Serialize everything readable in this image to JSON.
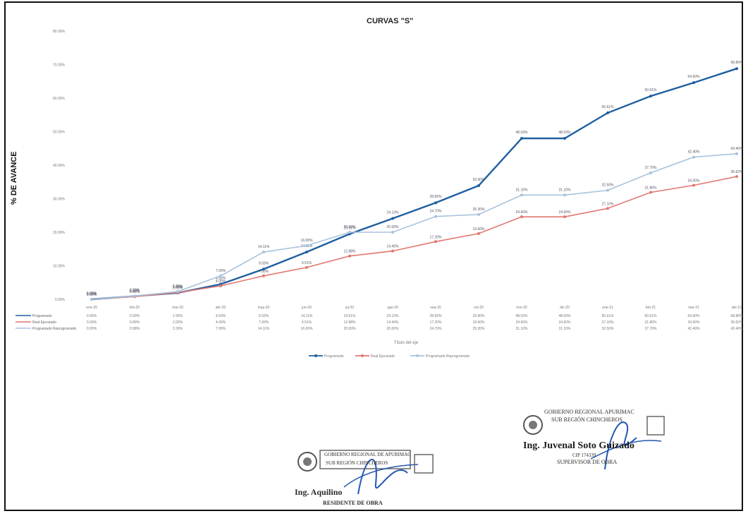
{
  "chart_data": {
    "type": "line",
    "title": "CURVAS \"S\"",
    "ylabel": "% DE AVANCE",
    "xlabel": "Título del eje",
    "ylim": [
      0,
      80
    ],
    "yticks": [
      "0.00%",
      "10.00%",
      "20.00%",
      "30.00%",
      "40.00%",
      "50.00%",
      "60.00%",
      "70.00%",
      "80.00%"
    ],
    "categories": [
      "ene-20",
      "feb-20",
      "mar-20",
      "abr-20",
      "may-20",
      "jun-20",
      "jul-20",
      "ago-20",
      "sep-20",
      "oct-20",
      "nov-20",
      "dic-20",
      "ene-21",
      "feb-21",
      "mar-21",
      "abr-21"
    ],
    "series": [
      {
        "name": "Programado",
        "color": "#1f5fa0",
        "values": [
          0.0,
          0.93,
          1.9,
          4.5,
          9.0,
          14.1,
          19.5,
          24.1,
          28.8,
          33.9,
          48.0,
          48.0,
          55.6,
          60.6,
          64.6,
          68.8
        ]
      },
      {
        "name": "Real Ejecutado",
        "color": "#e0776f",
        "values": [
          0.0,
          0.8,
          2.0,
          4.0,
          7.0,
          9.5,
          12.9,
          14.4,
          17.2,
          19.6,
          24.6,
          24.6,
          27.1,
          31.9,
          34.0,
          36.6
        ]
      },
      {
        "name": "Programado Reprogramado",
        "color": "#a8c2dd",
        "values": [
          0.0,
          0.98,
          2.3,
          7.0,
          14.1,
          16.0,
          20.0,
          20.0,
          24.7,
          25.3,
          31.1,
          31.1,
          32.5,
          37.7,
          42.4,
          43.4
        ]
      }
    ],
    "data_labels": {
      "Programado": [
        "0.00%",
        "0.93%",
        "1.90%",
        "4.50%",
        "9.03%",
        "14.11%",
        "19.51%",
        "24.13%",
        "28.82%",
        "33.90%",
        "48.03%",
        "48.03%",
        "55.61%",
        "60.61%",
        "64.60%",
        "68.80%"
      ],
      "Real Ejecutado": [
        "0.00%",
        "0.80%",
        "2.00%",
        "4.00%",
        "7.00%",
        "9.51%",
        "12.88%",
        "14.40%",
        "17.20%",
        "19.60%",
        "24.60%",
        "24.60%",
        "27.10%",
        "31.86%",
        "34.00%",
        "36.62%"
      ],
      "Programado Reprogramado": [
        "0.00%",
        "0.98%",
        "2.30%",
        "7.00%",
        "14.11%",
        "16.00%",
        "20.00%",
        "20.00%",
        "24.70%",
        "25.30%",
        "31.10%",
        "31.10%",
        "32.50%",
        "37.70%",
        "42.40%",
        "43.40%"
      ]
    },
    "grid": false,
    "legend": "bottom"
  },
  "signatures": {
    "left": {
      "org": "GOBIERNO REGIONAL DE APURIMAC",
      "sub": "SUB REGIÓN CHINCHEROS",
      "name": "Ing. Aquilino",
      "role": "RESIDENTE DE OBRA"
    },
    "right": {
      "org": "GOBIERNO REGIONAL APURIMAC",
      "sub": "SUB REGIÓN CHINCHEROS",
      "name": "Ing. Juvenal Soto Guizado",
      "cip": "CIP 174339",
      "role": "SUPERVISOR DE OBRA"
    }
  }
}
